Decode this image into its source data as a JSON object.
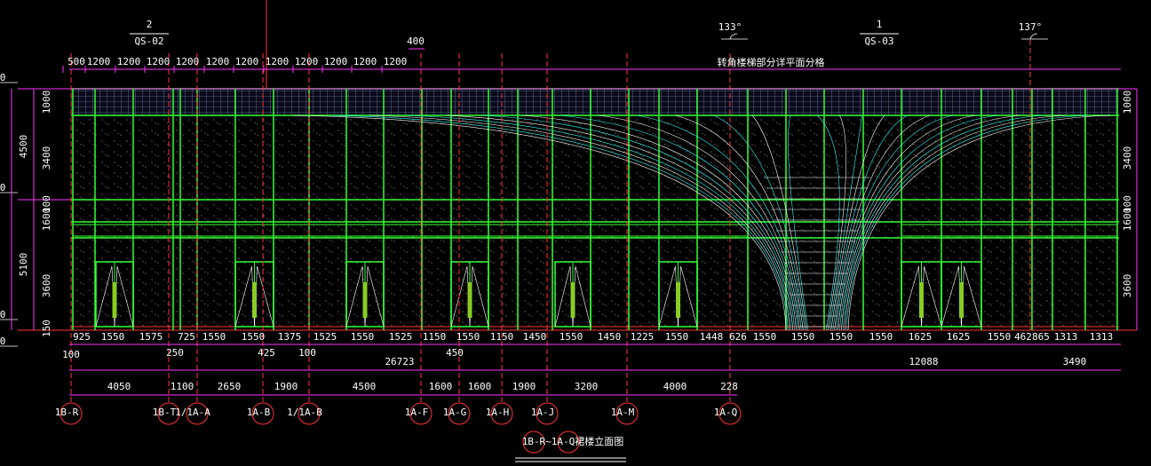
{
  "sections": [
    {
      "number": "2",
      "label": "QS-02"
    },
    {
      "number": "1",
      "label": "QS-03"
    }
  ],
  "angles": [
    "133°",
    "137°"
  ],
  "top_offset": "400",
  "top_dimensions": [
    "500",
    "1200",
    "1200",
    "1200",
    "1200",
    "1200",
    "1200",
    "1200",
    "1200",
    "1200",
    "1200",
    "1200"
  ],
  "note": "转角楼梯部分详平面分格",
  "level_markers": [
    "0",
    "0",
    "0",
    "0"
  ],
  "left_dimensions": [
    "1000",
    "3400",
    "4500",
    "100",
    "1600",
    "5100",
    "3600",
    "150"
  ],
  "right_dimensions": [
    "1000",
    "3400",
    "100",
    "1600",
    "3600"
  ],
  "bottom_dimensions": {
    "row1": [
      "925",
      "1550",
      "1575",
      "725",
      "1550",
      "1550",
      "1375",
      "1525",
      "1550",
      "1525",
      "1150",
      "1550",
      "1150",
      "1450",
      "1550",
      "1450",
      "1225",
      "1550",
      "1448",
      "626",
      "1550",
      "1550",
      "1550",
      "1550",
      "1625",
      "1625",
      "1550",
      "462",
      "865",
      "1313",
      "1313"
    ],
    "row2": [
      "100",
      "250",
      "425",
      "100",
      "26723",
      "450",
      "12088",
      "3490"
    ],
    "row3": [
      "4050",
      "1100",
      "2650",
      "1900",
      "4500",
      "1600",
      "1600",
      "1900",
      "3200",
      "4000",
      "228"
    ]
  },
  "axes": [
    "1B-R",
    "1B-T",
    "1/1A-A",
    "1A-B",
    "1/1A-B",
    "1A-F",
    "1A-G",
    "1A-H",
    "1A-J",
    "1A-M",
    "1A-Q"
  ],
  "title": "1B-R~1A-Q裙楼立面图"
}
